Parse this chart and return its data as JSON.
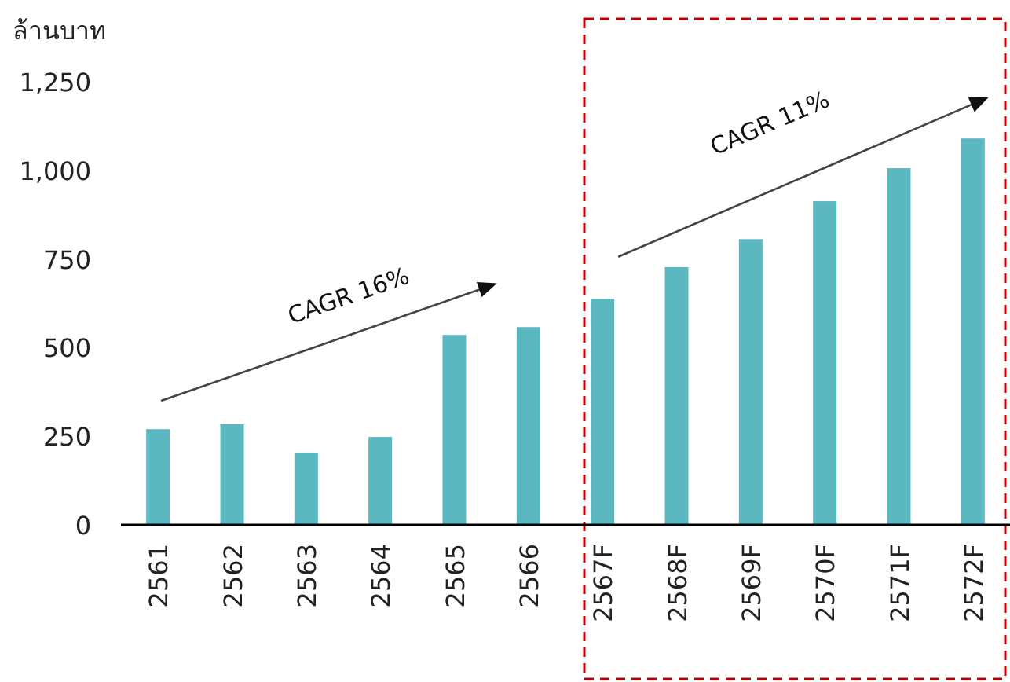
{
  "chart_data": {
    "type": "bar",
    "ylabel": "ล้านบาท",
    "categories": [
      "2561",
      "2562",
      "2563",
      "2564",
      "2565",
      "2566",
      "2567F",
      "2568F",
      "2569F",
      "2570F",
      "2571F",
      "2572F"
    ],
    "values": [
      270,
      284,
      204,
      248,
      536,
      558,
      638,
      727,
      806,
      913,
      1006,
      1090
    ],
    "color": "#5bb7c0",
    "ylim": [
      0,
      1250
    ],
    "yticks": [
      {
        "value": 0,
        "label": "0"
      },
      {
        "value": 250,
        "label": "250"
      },
      {
        "value": 500,
        "label": "500"
      },
      {
        "value": 750,
        "label": "750"
      },
      {
        "value": 1000,
        "label": "1,000"
      },
      {
        "value": 1250,
        "label": "1,250"
      }
    ],
    "grid": false,
    "annotations": [
      "CAGR 16%",
      "CAGR 11%"
    ]
  }
}
